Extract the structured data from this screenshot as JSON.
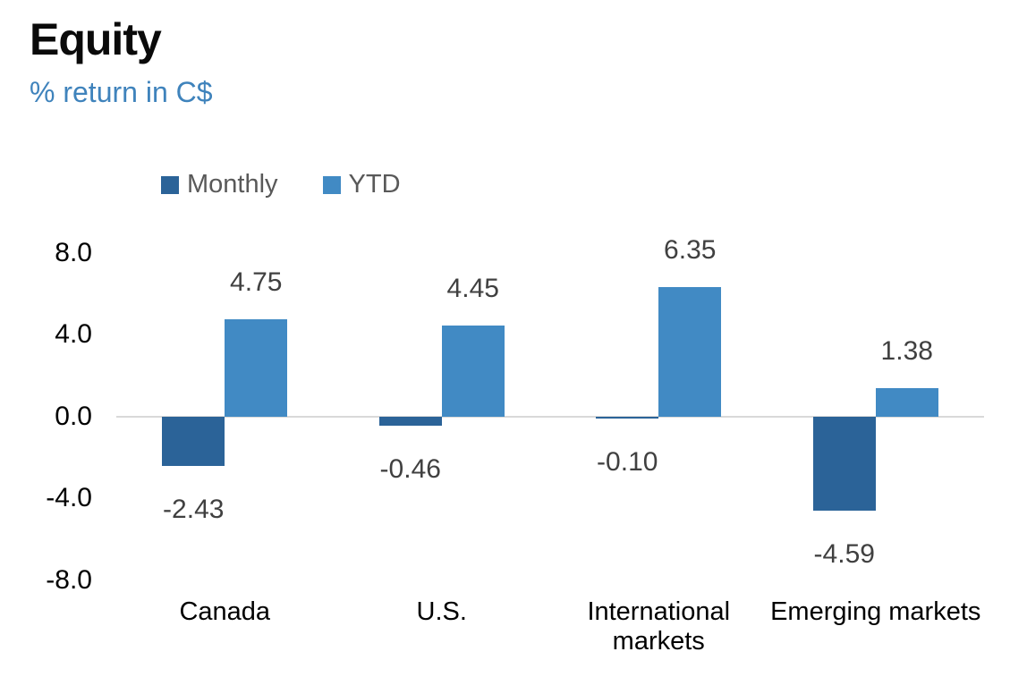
{
  "header": {
    "title": "Equity",
    "subtitle": "% return in C$"
  },
  "colors": {
    "monthly": "#2B6398",
    "ytd": "#418AC4",
    "subtitle_text": "#3F83BC",
    "legend_text": "#595959",
    "data_label": "#404040",
    "axis_text": "#000000",
    "zero_line": "#D9D9D9"
  },
  "chart_data": {
    "type": "bar",
    "title": "Equity",
    "subtitle": "% return in C$",
    "categories": [
      "Canada",
      "U.S.",
      "International markets",
      "Emerging markets"
    ],
    "series": [
      {
        "name": "Monthly",
        "color_key": "monthly",
        "values": [
          -2.43,
          -0.46,
          -0.1,
          -4.59
        ],
        "labels": [
          "-2.43",
          "-0.46",
          "-0.10",
          "-4.59"
        ]
      },
      {
        "name": "YTD",
        "color_key": "ytd",
        "values": [
          4.75,
          4.45,
          6.35,
          1.38
        ],
        "labels": [
          "4.75",
          "4.45",
          "6.35",
          "1.38"
        ]
      }
    ],
    "xlabel": "",
    "ylabel": "% return in C$",
    "ylim": [
      -8.0,
      8.0
    ],
    "yticks": [
      8.0,
      4.0,
      0.0,
      -4.0,
      -8.0
    ],
    "ytick_labels": [
      "8.0",
      "4.0",
      "0.0",
      "-4.0",
      "-8.0"
    ],
    "grid": false,
    "legend_position": "top"
  }
}
